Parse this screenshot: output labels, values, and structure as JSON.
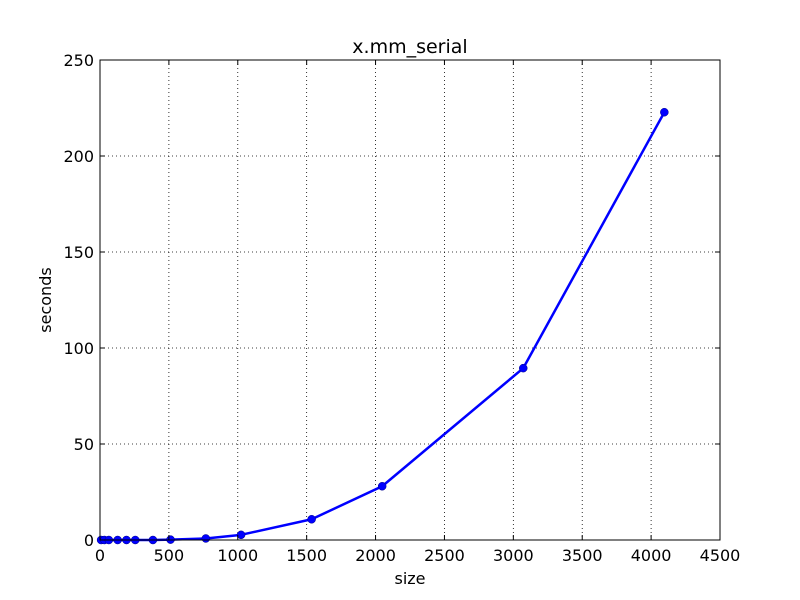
{
  "chart_data": {
    "type": "line",
    "title": "x.mm_serial",
    "xlabel": "size",
    "ylabel": "seconds",
    "xlim": [
      0,
      4500
    ],
    "ylim": [
      0,
      250
    ],
    "x_ticks": [
      0,
      500,
      1000,
      1500,
      2000,
      2500,
      3000,
      3500,
      4000,
      4500
    ],
    "y_ticks": [
      0,
      50,
      100,
      150,
      200,
      250
    ],
    "x_tick_labels": [
      "0",
      "500",
      "1000",
      "1500",
      "2000",
      "2500",
      "3000",
      "3500",
      "4000",
      "4500"
    ],
    "y_tick_labels": [
      "0",
      "50",
      "100",
      "150",
      "200",
      "250"
    ],
    "grid": true,
    "series": [
      {
        "color": "#0000ff",
        "marker": "circle",
        "x": [
          8,
          32,
          64,
          128,
          192,
          256,
          384,
          512,
          768,
          1024,
          1536,
          2048,
          3072,
          4096
        ],
        "y": [
          0,
          0,
          0,
          0,
          0,
          0,
          0,
          0.2,
          0.8,
          2.7,
          10.8,
          28,
          89.5,
          222.8
        ]
      }
    ]
  }
}
